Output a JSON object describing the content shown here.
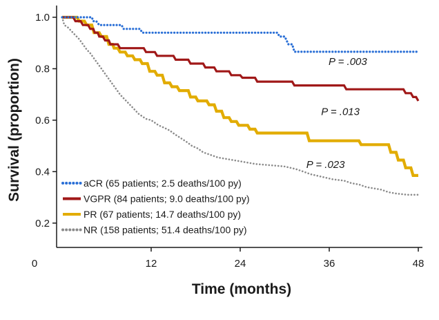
{
  "chart_data": {
    "type": "line",
    "step": true,
    "title": "",
    "xlabel": "Time (months)",
    "ylabel": "Survival (proportion)",
    "xlim": [
      0,
      48
    ],
    "ylim": [
      0.1,
      1.0
    ],
    "x_ticks": [
      0,
      12,
      24,
      36,
      48
    ],
    "x_tick_labels": [
      "0",
      "12",
      "24",
      "36",
      "48"
    ],
    "y_ticks": [
      0.2,
      0.4,
      0.6,
      0.8,
      1.0
    ],
    "y_tick_labels": [
      "0.2",
      "0.4",
      "0.6",
      "0.8",
      "1.0"
    ],
    "grid": false,
    "legend_position": "bottom-left",
    "series": [
      {
        "name": "aCR",
        "legend_label": "aCR (65 patients; 2.5 deaths/100 py)",
        "color": "#2a6fd6",
        "style": "dotted",
        "points": [
          [
            0,
            1.0
          ],
          [
            4,
            1.0
          ],
          [
            4.2,
            0.985
          ],
          [
            4.6,
            0.985
          ],
          [
            5,
            0.97
          ],
          [
            8,
            0.97
          ],
          [
            8.3,
            0.955
          ],
          [
            10.5,
            0.955
          ],
          [
            10.8,
            0.94
          ],
          [
            29,
            0.94
          ],
          [
            29.3,
            0.925
          ],
          [
            30,
            0.925
          ],
          [
            30.5,
            0.895
          ],
          [
            31,
            0.895
          ],
          [
            31.3,
            0.866
          ],
          [
            48,
            0.866
          ]
        ]
      },
      {
        "name": "VGPR",
        "legend_label": "VGPR (84 patients; 9.0 deaths/100 py)",
        "color": "#a01818",
        "style": "solid",
        "points": [
          [
            0,
            1.0
          ],
          [
            1.5,
            1.0
          ],
          [
            1.8,
            0.985
          ],
          [
            2.5,
            0.985
          ],
          [
            2.8,
            0.97
          ],
          [
            3.5,
            0.97
          ],
          [
            3.8,
            0.955
          ],
          [
            4.2,
            0.955
          ],
          [
            4.4,
            0.94
          ],
          [
            4.8,
            0.94
          ],
          [
            5,
            0.925
          ],
          [
            5.5,
            0.925
          ],
          [
            5.8,
            0.91
          ],
          [
            6.3,
            0.91
          ],
          [
            6.5,
            0.895
          ],
          [
            7.5,
            0.895
          ],
          [
            7.8,
            0.88
          ],
          [
            11,
            0.88
          ],
          [
            11.3,
            0.865
          ],
          [
            12.5,
            0.865
          ],
          [
            12.8,
            0.85
          ],
          [
            15,
            0.85
          ],
          [
            15.3,
            0.835
          ],
          [
            17,
            0.835
          ],
          [
            17.3,
            0.82
          ],
          [
            19,
            0.82
          ],
          [
            19.3,
            0.805
          ],
          [
            20.5,
            0.805
          ],
          [
            20.8,
            0.79
          ],
          [
            22.5,
            0.79
          ],
          [
            22.8,
            0.775
          ],
          [
            24,
            0.775
          ],
          [
            24.3,
            0.765
          ],
          [
            26,
            0.765
          ],
          [
            26.3,
            0.75
          ],
          [
            31,
            0.75
          ],
          [
            31.3,
            0.735
          ],
          [
            38,
            0.735
          ],
          [
            38.3,
            0.72
          ],
          [
            46,
            0.72
          ],
          [
            46.3,
            0.705
          ],
          [
            47,
            0.705
          ],
          [
            47.3,
            0.69
          ],
          [
            47.7,
            0.69
          ],
          [
            48,
            0.675
          ]
        ]
      },
      {
        "name": "PR",
        "legend_label": "PR (67 patients; 14.7 deaths/100 py)",
        "color": "#e2ac00",
        "style": "solid",
        "points": [
          [
            0,
            1.0
          ],
          [
            2,
            1.0
          ],
          [
            2.3,
            0.985
          ],
          [
            3,
            0.985
          ],
          [
            3.3,
            0.97
          ],
          [
            4,
            0.97
          ],
          [
            4.3,
            0.94
          ],
          [
            5,
            0.94
          ],
          [
            5.3,
            0.925
          ],
          [
            6,
            0.925
          ],
          [
            6.3,
            0.895
          ],
          [
            6.8,
            0.895
          ],
          [
            7,
            0.88
          ],
          [
            7.5,
            0.88
          ],
          [
            7.8,
            0.865
          ],
          [
            8.5,
            0.865
          ],
          [
            8.8,
            0.85
          ],
          [
            9.5,
            0.85
          ],
          [
            9.8,
            0.835
          ],
          [
            10.5,
            0.835
          ],
          [
            10.8,
            0.82
          ],
          [
            11.5,
            0.82
          ],
          [
            11.8,
            0.79
          ],
          [
            12.5,
            0.79
          ],
          [
            12.8,
            0.775
          ],
          [
            13.5,
            0.775
          ],
          [
            13.8,
            0.745
          ],
          [
            14.5,
            0.745
          ],
          [
            14.8,
            0.73
          ],
          [
            15.5,
            0.73
          ],
          [
            15.8,
            0.715
          ],
          [
            17,
            0.715
          ],
          [
            17.3,
            0.69
          ],
          [
            18,
            0.69
          ],
          [
            18.3,
            0.675
          ],
          [
            19.5,
            0.675
          ],
          [
            19.8,
            0.66
          ],
          [
            20.5,
            0.66
          ],
          [
            20.8,
            0.635
          ],
          [
            21.5,
            0.635
          ],
          [
            21.8,
            0.61
          ],
          [
            22.5,
            0.61
          ],
          [
            22.8,
            0.595
          ],
          [
            23.5,
            0.595
          ],
          [
            23.8,
            0.58
          ],
          [
            25,
            0.58
          ],
          [
            25.3,
            0.565
          ],
          [
            26,
            0.565
          ],
          [
            26.3,
            0.55
          ],
          [
            33,
            0.55
          ],
          [
            33.3,
            0.52
          ],
          [
            40,
            0.52
          ],
          [
            40.3,
            0.505
          ],
          [
            44,
            0.505
          ],
          [
            44.3,
            0.475
          ],
          [
            45,
            0.475
          ],
          [
            45.3,
            0.445
          ],
          [
            46,
            0.445
          ],
          [
            46.3,
            0.415
          ],
          [
            47,
            0.415
          ],
          [
            47.3,
            0.385
          ],
          [
            48,
            0.385
          ]
        ]
      },
      {
        "name": "NR",
        "legend_label": "NR (158 patients; 51.4 deaths/100 py)",
        "color": "#8a8a8a",
        "style": "dotted",
        "points": [
          [
            0,
            1.0
          ],
          [
            0.3,
            0.97
          ],
          [
            0.8,
            0.96
          ],
          [
            1.3,
            0.945
          ],
          [
            1.8,
            0.93
          ],
          [
            2.3,
            0.915
          ],
          [
            2.8,
            0.895
          ],
          [
            3.3,
            0.875
          ],
          [
            3.8,
            0.86
          ],
          [
            4.3,
            0.84
          ],
          [
            4.8,
            0.82
          ],
          [
            5.3,
            0.8
          ],
          [
            5.8,
            0.78
          ],
          [
            6.3,
            0.76
          ],
          [
            6.8,
            0.74
          ],
          [
            7.3,
            0.72
          ],
          [
            7.8,
            0.7
          ],
          [
            8.3,
            0.685
          ],
          [
            8.8,
            0.67
          ],
          [
            9.3,
            0.655
          ],
          [
            9.8,
            0.64
          ],
          [
            10.3,
            0.625
          ],
          [
            10.8,
            0.615
          ],
          [
            11.3,
            0.605
          ],
          [
            12,
            0.6
          ],
          [
            12.5,
            0.59
          ],
          [
            13,
            0.58
          ],
          [
            13.8,
            0.57
          ],
          [
            14.5,
            0.56
          ],
          [
            15.2,
            0.545
          ],
          [
            16,
            0.53
          ],
          [
            16.8,
            0.515
          ],
          [
            17.5,
            0.5
          ],
          [
            18.3,
            0.49
          ],
          [
            19,
            0.475
          ],
          [
            20,
            0.465
          ],
          [
            21,
            0.455
          ],
          [
            22,
            0.45
          ],
          [
            23,
            0.445
          ],
          [
            24,
            0.44
          ],
          [
            25,
            0.435
          ],
          [
            26,
            0.43
          ],
          [
            28,
            0.425
          ],
          [
            30,
            0.42
          ],
          [
            31.5,
            0.41
          ],
          [
            32.5,
            0.4
          ],
          [
            33.5,
            0.39
          ],
          [
            35,
            0.38
          ],
          [
            36.5,
            0.37
          ],
          [
            38,
            0.365
          ],
          [
            39,
            0.355
          ],
          [
            40,
            0.35
          ],
          [
            41,
            0.34
          ],
          [
            43,
            0.33
          ],
          [
            44,
            0.32
          ],
          [
            45,
            0.315
          ],
          [
            46.5,
            0.31
          ],
          [
            48,
            0.31
          ]
        ]
      }
    ],
    "annotations": [
      {
        "text": "P = .003",
        "x": 38.5,
        "y": 0.815
      },
      {
        "text": "P = .013",
        "x": 37.5,
        "y": 0.62
      },
      {
        "text": "P = .023",
        "x": 35.5,
        "y": 0.415
      }
    ]
  }
}
